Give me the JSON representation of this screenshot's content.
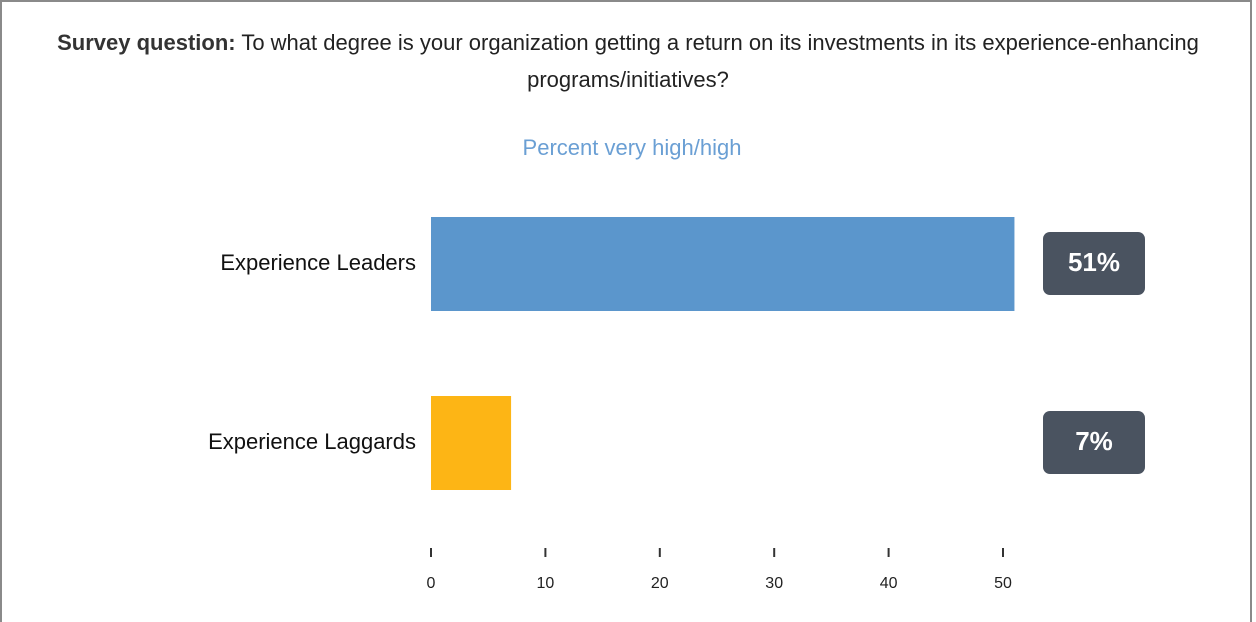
{
  "chart_data": {
    "type": "bar",
    "orientation": "horizontal",
    "title_lead": "Survey question:",
    "title": "To what degree is your organization getting a return on its investments in its experience-enhancing programs/initiatives?",
    "subtitle": "Percent very high/high",
    "categories": [
      "Experience Leaders",
      "Experience Laggards"
    ],
    "values": [
      51,
      7
    ],
    "value_labels": [
      "51%",
      "7%"
    ],
    "colors": [
      "#5b96cc",
      "#fdb515"
    ],
    "xlim": [
      0,
      51
    ],
    "xticks": [
      0,
      10,
      20,
      30,
      40,
      50
    ]
  }
}
